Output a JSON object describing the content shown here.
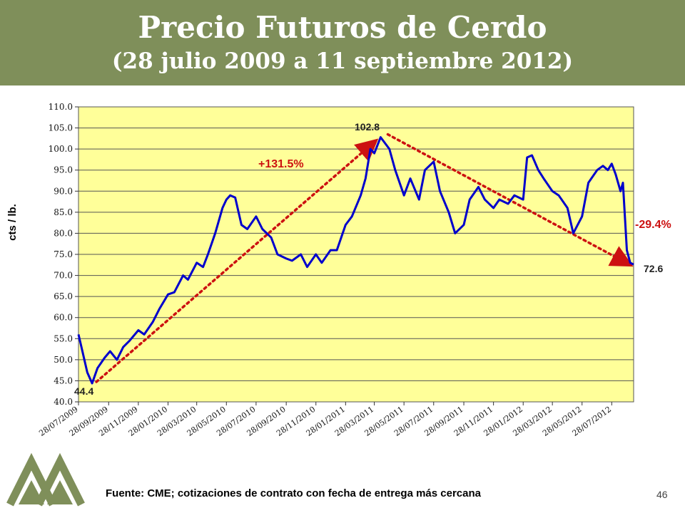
{
  "slide": {
    "title": "Precio Futuros de Cerdo",
    "subtitle": "(28 julio 2009 a 11 septiembre 2012)",
    "source": "Fuente: CME; cotizaciones de contrato con fecha de entrega más cercana",
    "page_number": "46"
  },
  "colors": {
    "header_bg": "#7f8f5a",
    "plot_bg": "#ffff99",
    "series": "#0000cc",
    "annotation": "#cc1111",
    "logo": "#7f8f5a"
  },
  "chart_data": {
    "type": "line",
    "title": "",
    "xlabel": "",
    "ylabel": "cts / lb.",
    "ylim": [
      40,
      110
    ],
    "yticks": [
      "40.0",
      "45.0",
      "50.0",
      "55.0",
      "60.0",
      "65.0",
      "70.0",
      "75.0",
      "80.0",
      "85.0",
      "90.0",
      "95.0",
      "100.0",
      "105.0",
      "110.0"
    ],
    "x_tick_labels": [
      "28/07/2009",
      "28/09/2009",
      "28/11/2009",
      "28/01/2010",
      "28/03/2010",
      "28/05/2010",
      "28/07/2010",
      "28/09/2010",
      "28/11/2010",
      "28/01/2011",
      "28/03/2011",
      "28/05/2011",
      "28/07/2011",
      "28/09/2011",
      "28/11/2011",
      "28/01/2012",
      "28/03/2012",
      "28/05/2012",
      "28/07/2012"
    ],
    "x_range": [
      "2009-07-28",
      "2012-09-11"
    ],
    "grid": "horizontal",
    "legend": "none",
    "series": [
      {
        "x": [
          "2009-07-28",
          "2009-08-05",
          "2009-08-15",
          "2009-08-25",
          "2009-09-05",
          "2009-09-20",
          "2009-10-01",
          "2009-10-15",
          "2009-10-28",
          "2009-11-10",
          "2009-11-28",
          "2009-12-10",
          "2009-12-28",
          "2010-01-10",
          "2010-01-28",
          "2010-02-10",
          "2010-02-28",
          "2010-03-10",
          "2010-03-28",
          "2010-04-10",
          "2010-04-20",
          "2010-05-05",
          "2010-05-20",
          "2010-05-28",
          "2010-06-05",
          "2010-06-15",
          "2010-06-28",
          "2010-07-10",
          "2010-07-28",
          "2010-08-10",
          "2010-08-28",
          "2010-09-10",
          "2010-09-28",
          "2010-10-10",
          "2010-10-28",
          "2010-11-10",
          "2010-11-28",
          "2010-12-10",
          "2010-12-28",
          "2011-01-10",
          "2011-01-28",
          "2011-02-10",
          "2011-02-28",
          "2011-03-10",
          "2011-03-20",
          "2011-03-28",
          "2011-04-10",
          "2011-04-28",
          "2011-05-10",
          "2011-05-28",
          "2011-06-10",
          "2011-06-28",
          "2011-07-10",
          "2011-07-28",
          "2011-08-10",
          "2011-08-28",
          "2011-09-10",
          "2011-09-28",
          "2011-10-10",
          "2011-10-28",
          "2011-11-10",
          "2011-11-28",
          "2011-12-10",
          "2011-12-28",
          "2012-01-10",
          "2012-01-28",
          "2012-02-05",
          "2012-02-15",
          "2012-02-28",
          "2012-03-10",
          "2012-03-28",
          "2012-04-10",
          "2012-04-28",
          "2012-05-10",
          "2012-05-28",
          "2012-06-10",
          "2012-06-28",
          "2012-07-10",
          "2012-07-20",
          "2012-07-28",
          "2012-08-05",
          "2012-08-15",
          "2012-08-20",
          "2012-08-28",
          "2012-09-04",
          "2012-09-11"
        ],
        "values": [
          56.0,
          52.0,
          47.0,
          44.4,
          48.0,
          50.5,
          52.0,
          50.0,
          53.0,
          54.5,
          57.0,
          56.0,
          59.0,
          62.0,
          65.5,
          66.0,
          70.0,
          69.0,
          73.0,
          72.0,
          75.0,
          80.0,
          86.0,
          88.0,
          89.0,
          88.5,
          82.0,
          81.0,
          84.0,
          81.0,
          79.0,
          75.0,
          74.0,
          73.5,
          75.0,
          72.0,
          75.0,
          73.0,
          76.0,
          76.0,
          82.0,
          84.0,
          89.0,
          93.0,
          100.0,
          99.0,
          102.8,
          100.0,
          95.0,
          89.0,
          93.0,
          88.0,
          95.0,
          97.0,
          90.0,
          85.0,
          80.0,
          82.0,
          88.0,
          91.0,
          88.0,
          86.0,
          88.0,
          87.0,
          89.0,
          88.0,
          98.0,
          98.5,
          95.0,
          93.0,
          90.0,
          89.0,
          86.0,
          80.0,
          84.0,
          92.0,
          95.0,
          96.0,
          95.0,
          96.5,
          94.0,
          90.0,
          92.0,
          76.0,
          73.0,
          72.6
        ]
      }
    ],
    "data_labels": [
      "44.4",
      "102.8",
      "72.6"
    ],
    "annotations": [
      "+131.5%",
      "-29.4%"
    ]
  }
}
